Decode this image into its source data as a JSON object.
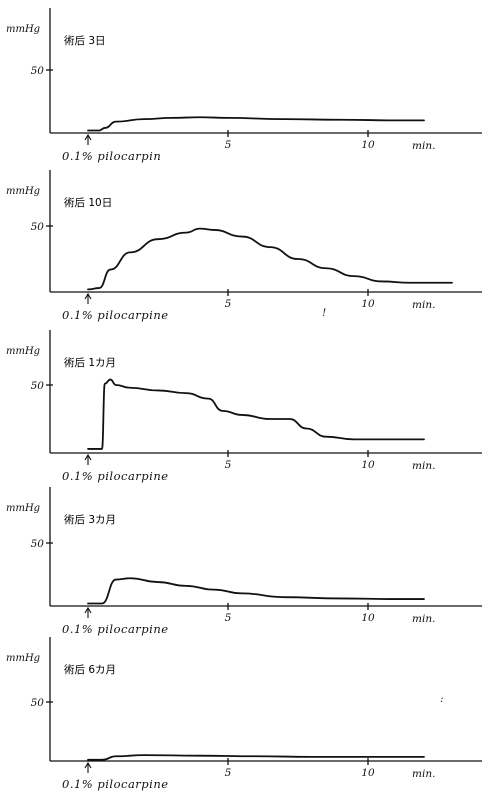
{
  "chart_data": [
    {
      "type": "line",
      "title": "術后 3日",
      "ylabel": "mmHg",
      "y_tick_labels": [
        "50"
      ],
      "x_tick_labels": [
        "5",
        "10",
        "min."
      ],
      "annotation": "0.1% pilocarpin",
      "xlim": [
        -1,
        13
      ],
      "ylim": [
        0,
        60
      ],
      "x": [
        0,
        0.4,
        0.6,
        1.0,
        2,
        3,
        4,
        5,
        7,
        9,
        11,
        12
      ],
      "y": [
        2,
        2,
        4,
        9,
        11,
        12,
        12.5,
        12,
        11,
        10.5,
        10,
        10
      ]
    },
    {
      "type": "line",
      "title": "術后 10日",
      "ylabel": "mmHg",
      "y_tick_labels": [
        "50"
      ],
      "x_tick_labels": [
        "5",
        "10",
        "min."
      ],
      "annotation": "0.1% pilocarpine",
      "extra_marks": [
        "!"
      ],
      "xlim": [
        -1,
        13
      ],
      "ylim": [
        0,
        60
      ],
      "x": [
        0,
        0.4,
        0.8,
        1.5,
        2.5,
        3.5,
        4.0,
        4.5,
        5.5,
        6.5,
        7.5,
        8.5,
        9.5,
        10.5,
        11.5,
        13
      ],
      "y": [
        2,
        3,
        17,
        30,
        40,
        45,
        48,
        47,
        42,
        34,
        25,
        18,
        12,
        8,
        7,
        7
      ]
    },
    {
      "type": "line",
      "title": "術后 1カ月",
      "ylabel": "mmHg",
      "y_tick_labels": [
        "50"
      ],
      "x_tick_labels": [
        "5",
        "10",
        "min."
      ],
      "annotation": "0.1% pilocarpine",
      "xlim": [
        -1,
        13
      ],
      "ylim": [
        0,
        60
      ],
      "x": [
        0,
        0.5,
        0.6,
        0.8,
        1.0,
        1.5,
        2.5,
        3.5,
        4.3,
        4.8,
        5.5,
        6.5,
        7.2,
        7.8,
        8.5,
        9.5,
        10.5,
        12
      ],
      "y": [
        3,
        3,
        51,
        54,
        50,
        48,
        46,
        44,
        40,
        31,
        28,
        25,
        25,
        18,
        12,
        10,
        10,
        10
      ]
    },
    {
      "type": "line",
      "title": "術后 3カ月",
      "ylabel": "mmHg",
      "y_tick_labels": [
        "50"
      ],
      "x_tick_labels": [
        "5",
        "10",
        "min."
      ],
      "annotation": "0.1% pilocarpine",
      "xlim": [
        -1,
        13
      ],
      "ylim": [
        0,
        60
      ],
      "x": [
        0,
        0.5,
        1.0,
        1.5,
        2.5,
        3.5,
        4.5,
        5.5,
        7,
        9,
        11,
        12
      ],
      "y": [
        2,
        2,
        21,
        22,
        19,
        16,
        13,
        10,
        7,
        6,
        5.5,
        5.5
      ]
    },
    {
      "type": "line",
      "title": "術后 6カ月",
      "ylabel": "mmHg",
      "y_tick_labels": [
        "50"
      ],
      "x_tick_labels": [
        "5",
        "10",
        "min."
      ],
      "annotation": "0.1% pilocarpine",
      "extra_marks": [
        ":"
      ],
      "xlim": [
        -1,
        13
      ],
      "ylim": [
        0,
        60
      ],
      "x": [
        0,
        0.5,
        1.0,
        2,
        4,
        6,
        8,
        10,
        12
      ],
      "y": [
        1,
        1,
        4,
        5,
        4.5,
        4,
        3.5,
        3.5,
        3.5
      ]
    }
  ]
}
